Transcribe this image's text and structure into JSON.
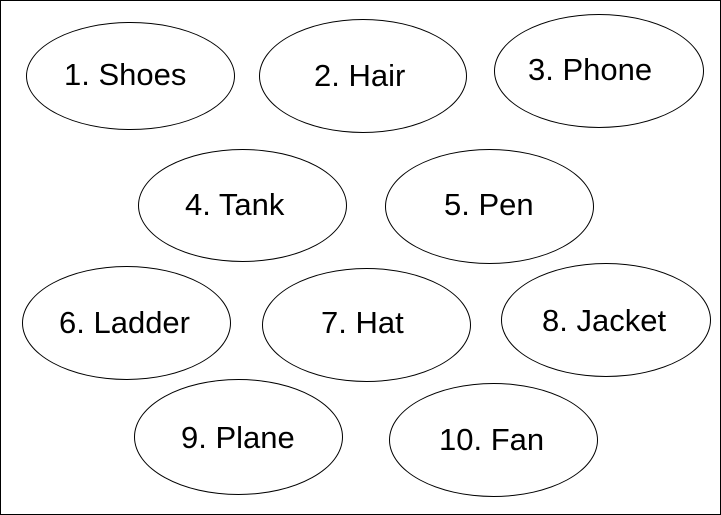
{
  "items": [
    {
      "label": "1. Shoes"
    },
    {
      "label": "2. Hair"
    },
    {
      "label": "3. Phone"
    },
    {
      "label": "4. Tank"
    },
    {
      "label": "5. Pen"
    },
    {
      "label": "6. Ladder"
    },
    {
      "label": "7. Hat"
    },
    {
      "label": "8. Jacket"
    },
    {
      "label": "9. Plane"
    },
    {
      "label": "10. Fan"
    }
  ],
  "colors": {
    "outline": "#000000",
    "text": "#000000",
    "background": "#ffffff"
  }
}
